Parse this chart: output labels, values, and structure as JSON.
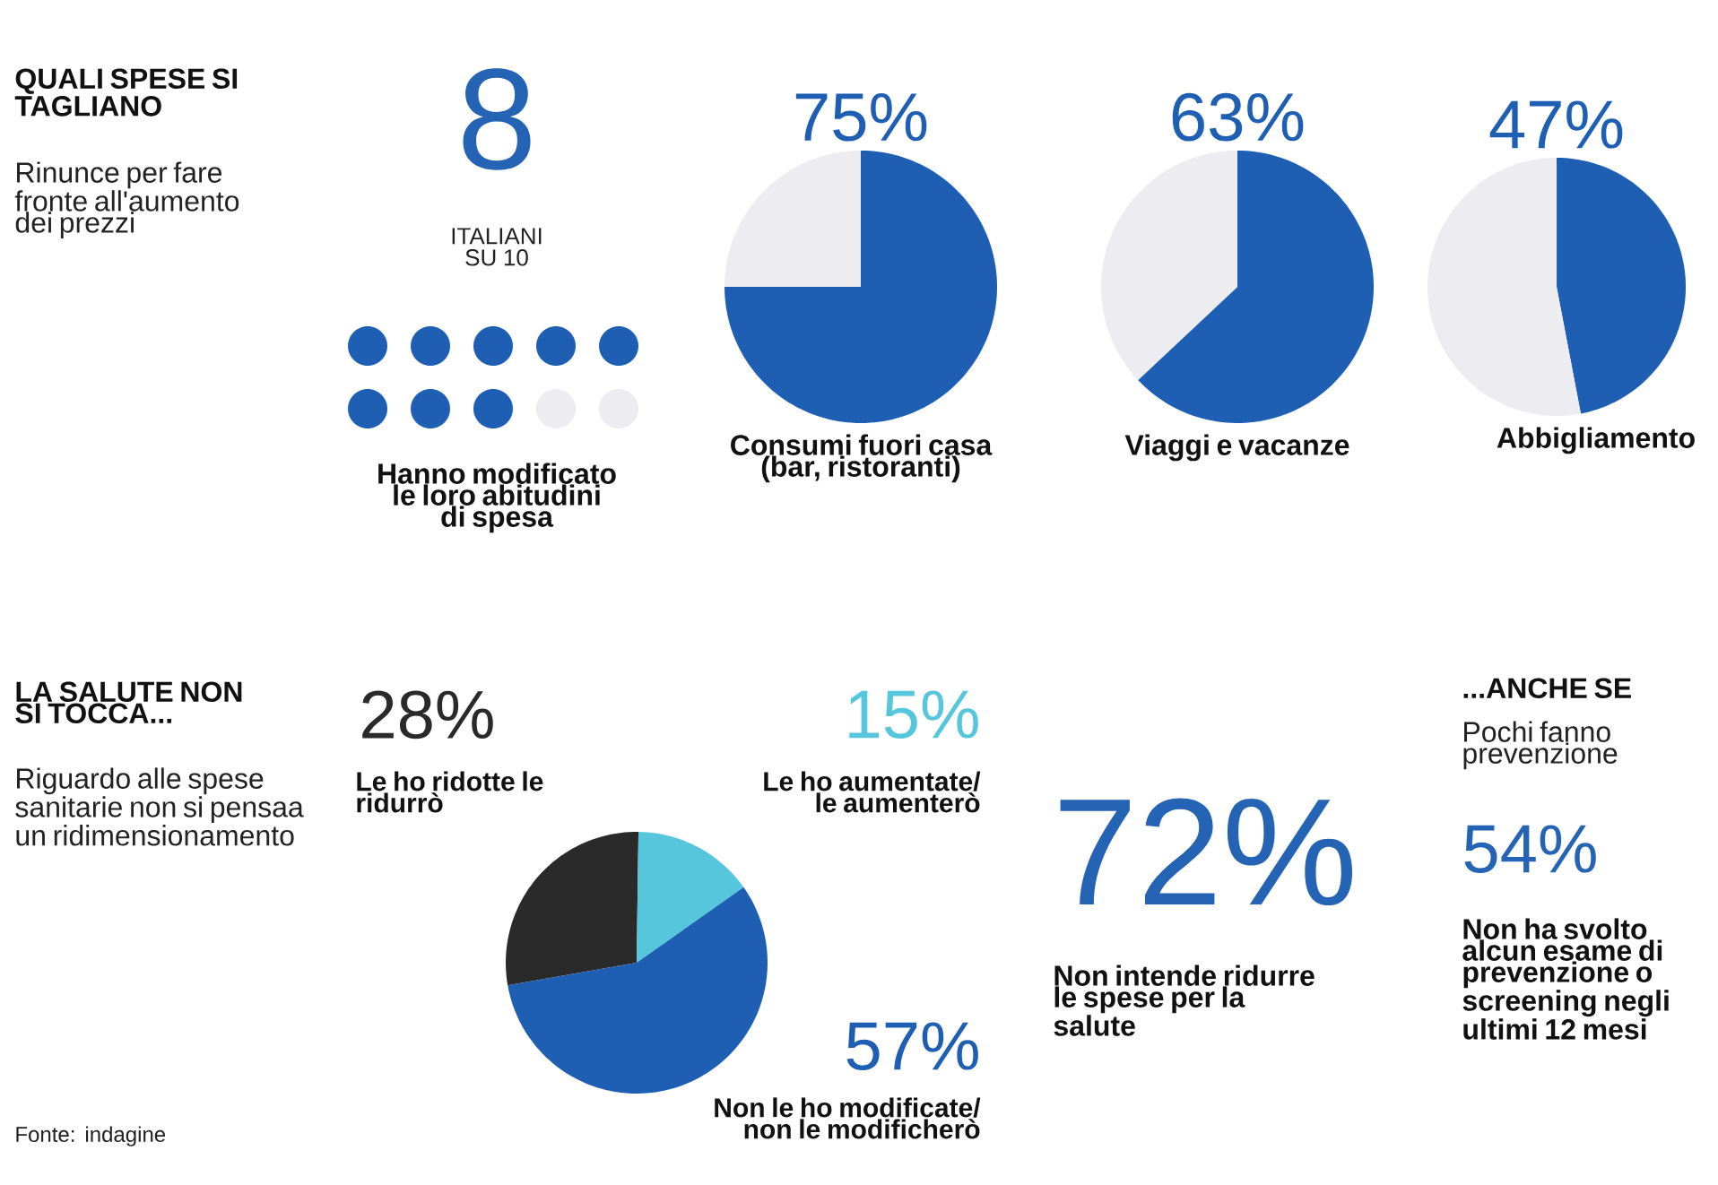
{
  "chart_data": [
    {
      "type": "other",
      "title": "QUALI SPESE SI TAGLIANO",
      "subtitle": "Rinunce per fare fronte all'aumento dei prezzi"
    },
    {
      "type": "other",
      "values": [
        8
      ],
      "value_labels": [
        "8"
      ],
      "subtitle": "ITALIANI SU 10",
      "xlabel": "Hanno modificato le loro abitudini di spesa",
      "color": "#1e5fb3"
    },
    {
      "type": "pie",
      "categories": [
        "Consumi fuori casa (bar, ristoranti)",
        null
      ],
      "values": [
        75,
        25
      ],
      "colors": [
        "#1e5fb3",
        "#ececf1"
      ],
      "value_labels": [
        "75%",
        null
      ]
    },
    {
      "type": "pie",
      "categories": [
        "Viaggi e vacanze",
        null
      ],
      "values": [
        63,
        37
      ],
      "colors": [
        "#1e5fb3",
        "#ececf1"
      ],
      "value_labels": [
        "63%",
        null
      ]
    },
    {
      "type": "pie",
      "categories": [
        "Abbigliamento",
        null
      ],
      "values": [
        47,
        53
      ],
      "colors": [
        "#1e5fb3",
        "#ececf1"
      ],
      "value_labels": [
        "47%",
        null
      ]
    },
    {
      "type": "other",
      "title": "LA SALUTE NON SI TOCCA...",
      "subtitle": "Riguardo alle spese sanitarie non si pensaa un ridimensionamento",
      "annotations": [
        "Fonte: indagine"
      ]
    },
    {
      "type": "pie",
      "categories": [
        "Le ho ridotte le ridurrò",
        "Le ho aumentate/ le aumenterò",
        "Non le ho modificate/ non le modificherò"
      ],
      "values": [
        28,
        15,
        57
      ],
      "colors": [
        "#2a2a2a",
        "#56c6dd",
        "#1e5fb3"
      ],
      "value_labels": [
        "28%",
        "15%",
        "57%"
      ]
    },
    {
      "type": "other",
      "title": "72%",
      "xlabel": "Non intende ridurre le spese per la salute"
    },
    {
      "type": "other",
      "title": "...ANCHE SE",
      "subtitle": "Pochi fanno prevenzione",
      "annotations": [
        "54%",
        "Non ha svolto alcun esame di prevenzione o screening negli ultimi 12 mesi"
      ]
    }
  ]
}
